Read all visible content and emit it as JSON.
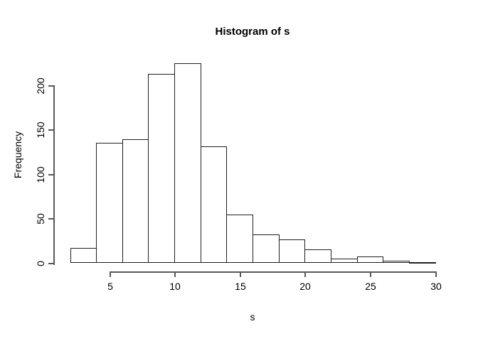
{
  "chart_data": {
    "type": "bar",
    "subtype": "histogram",
    "title": "Histogram of s",
    "xlabel": "s",
    "ylabel": "Frequency",
    "bin_breaks": [
      2,
      4,
      6,
      8,
      10,
      12,
      14,
      16,
      18,
      20,
      22,
      24,
      26,
      28,
      30
    ],
    "counts": [
      17,
      135,
      139,
      212,
      224,
      131,
      54,
      32,
      26,
      15,
      5,
      7,
      2,
      1
    ],
    "x_ticks": [
      5,
      10,
      15,
      20,
      25,
      30
    ],
    "y_ticks": [
      0,
      50,
      100,
      150,
      200
    ],
    "xlim": [
      2,
      30
    ],
    "ylim": [
      0,
      224
    ],
    "grid": false,
    "legend_position": "none",
    "colors": {
      "bar_fill": "#ffffff",
      "bar_border": "#1f1f1f",
      "axis": "#585858",
      "text": "#000000",
      "background": "#ffffff"
    }
  }
}
